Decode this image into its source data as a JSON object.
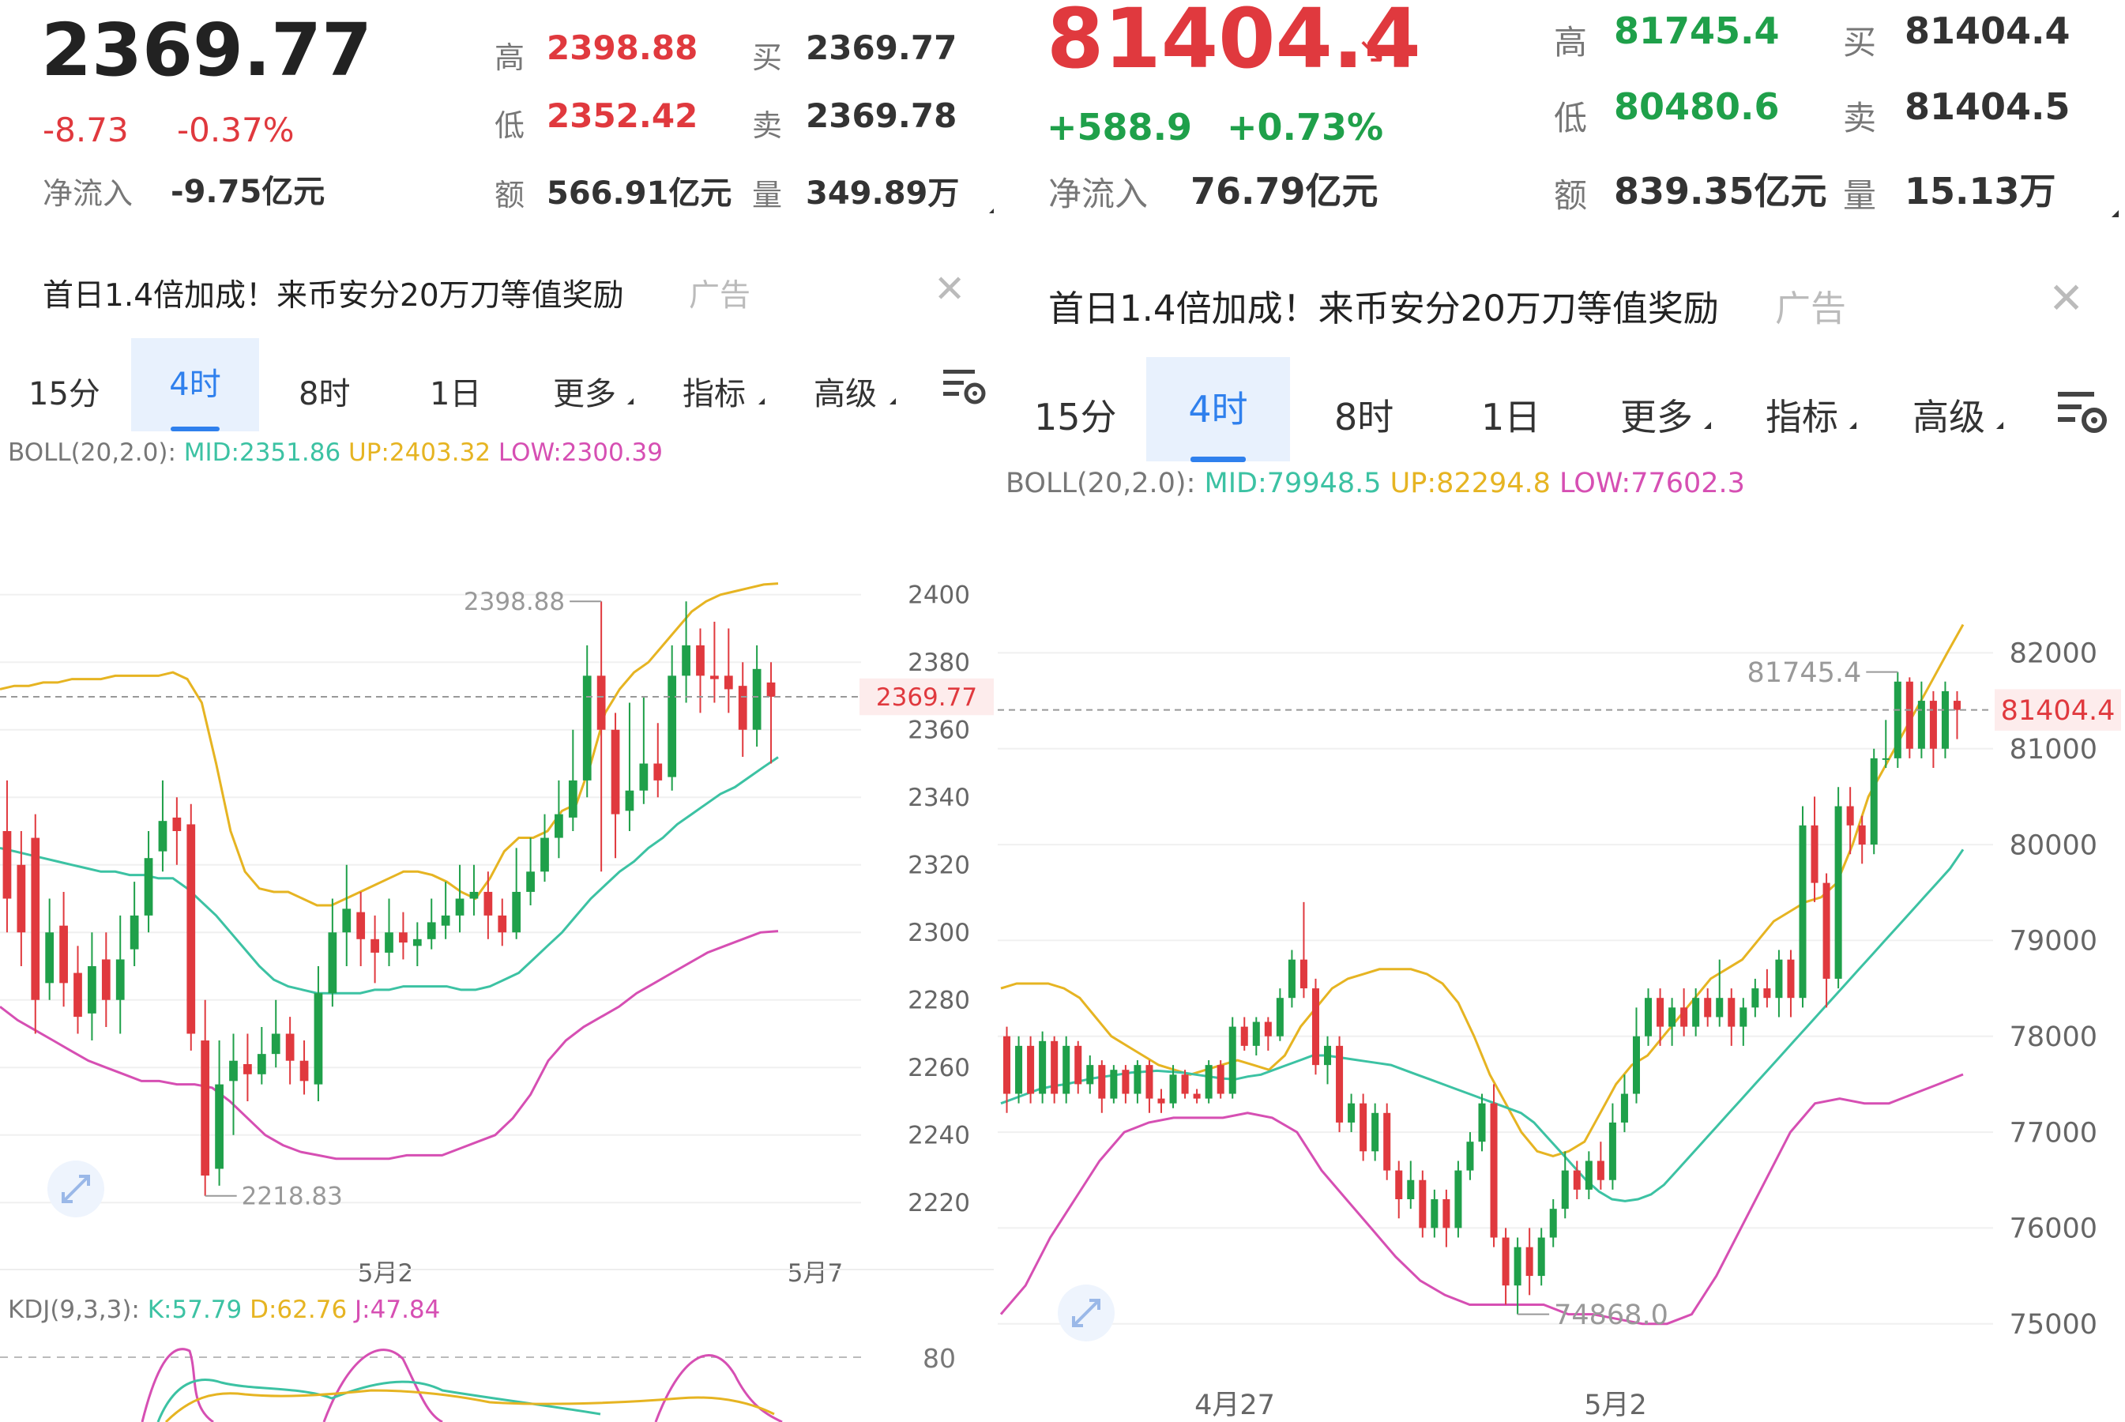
{
  "left": {
    "price": "2369.77",
    "change": "-8.73",
    "change_pct": "-0.37%",
    "netflow_label": "净流入",
    "netflow_value": "-9.75亿元",
    "stats": {
      "high_label": "高",
      "high": "2398.88",
      "low_label": "低",
      "low": "2352.42",
      "amount_label": "额",
      "amount": "566.91亿元",
      "buy_label": "买",
      "buy": "2369.77",
      "sell_label": "卖",
      "sell": "2369.78",
      "volume_label": "量",
      "volume": "349.89万"
    },
    "ad_text": "首日1.4倍加成！来币安分20万刀等值奖励",
    "ad_tag": "广告",
    "tabs": [
      "15分",
      "4时",
      "8时",
      "1日",
      "更多",
      "指标",
      "高级"
    ],
    "active_tab": "4时",
    "boll_label": "BOLL(20,2.0):",
    "boll_mid": "MID:2351.86",
    "boll_up": "UP:2403.32",
    "boll_low": "LOW:2300.39",
    "kdj_label": "KDJ(9,3,3):",
    "kdj_k": "K:57.79",
    "kdj_d": "D:62.76",
    "kdj_j": "J:47.84",
    "kdj_tick": "80"
  },
  "right": {
    "price": "81404.4",
    "change": "+588.9",
    "change_pct": "+0.73%",
    "netflow_label": "净流入",
    "netflow_value": "76.79亿元",
    "stats": {
      "high_label": "高",
      "high": "81745.4",
      "low_label": "低",
      "low": "80480.6",
      "amount_label": "额",
      "amount": "839.35亿元",
      "buy_label": "买",
      "buy": "81404.4",
      "sell_label": "卖",
      "sell": "81404.5",
      "volume_label": "量",
      "volume": "15.13万"
    },
    "ad_text": "首日1.4倍加成！来币安分20万刀等值奖励",
    "ad_tag": "广告",
    "tabs": [
      "15分",
      "4时",
      "8时",
      "1日",
      "更多",
      "指标",
      "高级"
    ],
    "active_tab": "4时",
    "boll_label": "BOLL(20,2.0):",
    "boll_mid": "MID:79948.5",
    "boll_up": "UP:82294.8",
    "boll_low": "LOW:77602.3"
  },
  "colors": {
    "up": "#1fa04a",
    "down": "#e0393e",
    "mid": "#3cc2a3",
    "upper": "#e6b422",
    "lower": "#d64fb3",
    "active_tab": "#2f80ed"
  },
  "chart_data": [
    {
      "type": "candlestick",
      "ylim": [
        2210,
        2410
      ],
      "y_ticks": [
        2400,
        2380,
        2360,
        2340,
        2320,
        2300,
        2280,
        2260,
        2240,
        2220
      ],
      "x_labels": [
        "5月2",
        "5月7"
      ],
      "last_price": 2369.77,
      "high_annotation": "2398.88",
      "low_annotation": "2218.83",
      "candles": [
        [
          2330,
          2310,
          2345,
          2300
        ],
        [
          2320,
          2300,
          2330,
          2290
        ],
        [
          2328,
          2280,
          2335,
          2270
        ],
        [
          2285,
          2300,
          2310,
          2280
        ],
        [
          2302,
          2285,
          2312,
          2278
        ],
        [
          2288,
          2275,
          2296,
          2270
        ],
        [
          2276,
          2290,
          2300,
          2268
        ],
        [
          2292,
          2280,
          2300,
          2272
        ],
        [
          2280,
          2292,
          2305,
          2270
        ],
        [
          2295,
          2305,
          2315,
          2290
        ],
        [
          2305,
          2322,
          2330,
          2300
        ],
        [
          2324,
          2333,
          2345,
          2318
        ],
        [
          2334,
          2330,
          2340,
          2320
        ],
        [
          2332,
          2270,
          2338,
          2265
        ],
        [
          2268,
          2228,
          2280,
          2222
        ],
        [
          2230,
          2255,
          2268,
          2225
        ],
        [
          2256,
          2262,
          2270,
          2240
        ],
        [
          2261,
          2258,
          2270,
          2250
        ],
        [
          2258,
          2264,
          2272,
          2255
        ],
        [
          2264,
          2270,
          2280,
          2260
        ],
        [
          2270,
          2262,
          2275,
          2255
        ],
        [
          2262,
          2256,
          2268,
          2252
        ],
        [
          2255,
          2282,
          2290,
          2250
        ],
        [
          2282,
          2300,
          2310,
          2278
        ],
        [
          2300,
          2307,
          2320,
          2290
        ],
        [
          2306,
          2298,
          2312,
          2290
        ],
        [
          2298,
          2294,
          2305,
          2285
        ],
        [
          2294,
          2300,
          2310,
          2290
        ],
        [
          2300,
          2297,
          2306,
          2292
        ],
        [
          2296,
          2298,
          2303,
          2290
        ],
        [
          2298,
          2303,
          2310,
          2295
        ],
        [
          2302,
          2305,
          2315,
          2298
        ],
        [
          2305,
          2310,
          2320,
          2300
        ],
        [
          2310,
          2312,
          2320,
          2305
        ],
        [
          2312,
          2305,
          2318,
          2298
        ],
        [
          2305,
          2300,
          2310,
          2296
        ],
        [
          2300,
          2312,
          2325,
          2298
        ],
        [
          2312,
          2318,
          2328,
          2308
        ],
        [
          2318,
          2328,
          2335,
          2315
        ],
        [
          2328,
          2335,
          2345,
          2322
        ],
        [
          2334,
          2345,
          2360,
          2330
        ],
        [
          2345,
          2376,
          2385,
          2340
        ],
        [
          2376,
          2360,
          2398,
          2318
        ],
        [
          2360,
          2335,
          2365,
          2322
        ],
        [
          2336,
          2342,
          2368,
          2330
        ],
        [
          2342,
          2350,
          2370,
          2338
        ],
        [
          2350,
          2345,
          2362,
          2340
        ],
        [
          2346,
          2376,
          2385,
          2342
        ],
        [
          2376,
          2385,
          2398,
          2368
        ],
        [
          2385,
          2376,
          2390,
          2365
        ],
        [
          2376,
          2375,
          2392,
          2368
        ],
        [
          2376,
          2372,
          2390,
          2365
        ],
        [
          2373,
          2360,
          2380,
          2352
        ],
        [
          2360,
          2378,
          2385,
          2355
        ],
        [
          2374,
          2369.77,
          2380,
          2350
        ]
      ],
      "boll_mid": [
        2325,
        2324,
        2323,
        2322,
        2321,
        2320,
        2319,
        2318,
        2318,
        2317,
        2317,
        2316,
        2316,
        2313,
        2309,
        2305,
        2300,
        2295,
        2290,
        2286,
        2284,
        2283,
        2282,
        2282,
        2282,
        2282,
        2283,
        2283,
        2284,
        2284,
        2284,
        2284,
        2283,
        2283,
        2284,
        2286,
        2288,
        2292,
        2296,
        2300,
        2305,
        2310,
        2314,
        2318,
        2321,
        2325,
        2328,
        2332,
        2335,
        2338,
        2341,
        2343,
        2346,
        2349,
        2351.86
      ],
      "boll_up": [
        2372,
        2373,
        2373,
        2374,
        2374,
        2375,
        2375,
        2375,
        2376,
        2376,
        2376,
        2376,
        2377,
        2375,
        2368,
        2350,
        2330,
        2318,
        2313,
        2312,
        2312,
        2310,
        2308,
        2308,
        2310,
        2312,
        2314,
        2316,
        2318,
        2318,
        2317,
        2315,
        2312,
        2310,
        2316,
        2324,
        2328,
        2328,
        2330,
        2336,
        2338,
        2350,
        2365,
        2372,
        2377,
        2380,
        2385,
        2390,
        2395,
        2398,
        2400,
        2401,
        2402,
        2403,
        2403.32
      ],
      "boll_low": [
        2278,
        2274,
        2271,
        2268,
        2265,
        2262,
        2260,
        2258,
        2256,
        2256,
        2255,
        2255,
        2254,
        2250,
        2245,
        2240,
        2237,
        2235,
        2234,
        2233,
        2233,
        2233,
        2233,
        2234,
        2234,
        2234,
        2236,
        2238,
        2240,
        2245,
        2252,
        2262,
        2268,
        2272,
        2275,
        2278,
        2282,
        2285,
        2288,
        2291,
        2294,
        2296,
        2298,
        2300,
        2300.39
      ]
    },
    {
      "type": "candlestick",
      "ylim": [
        74800,
        82300
      ],
      "y_ticks": [
        82000,
        81000,
        80000,
        79000,
        78000,
        77000,
        76000,
        75000
      ],
      "x_labels": [
        "4月27",
        "5月2"
      ],
      "last_price": 81404.4,
      "high_annotation": "81745.4",
      "low_annotation": "74868.0",
      "candles": [
        [
          78000,
          77400,
          78100,
          77200
        ],
        [
          77400,
          77900,
          78000,
          77300
        ],
        [
          77900,
          77400,
          78000,
          77300
        ],
        [
          77400,
          77950,
          78050,
          77300
        ],
        [
          77950,
          77400,
          78000,
          77300
        ],
        [
          77400,
          77900,
          78000,
          77300
        ],
        [
          77900,
          77500,
          77950,
          77400
        ],
        [
          77500,
          77700,
          77800,
          77400
        ],
        [
          77700,
          77350,
          77750,
          77200
        ],
        [
          77350,
          77650,
          77700,
          77300
        ],
        [
          77650,
          77400,
          77700,
          77300
        ],
        [
          77400,
          77700,
          77750,
          77300
        ],
        [
          77700,
          77350,
          77750,
          77200
        ],
        [
          77350,
          77300,
          77450,
          77200
        ],
        [
          77300,
          77600,
          77700,
          77250
        ],
        [
          77600,
          77400,
          77650,
          77350
        ],
        [
          77400,
          77350,
          77450,
          77300
        ],
        [
          77350,
          77700,
          77750,
          77300
        ],
        [
          77700,
          77400,
          77750,
          77350
        ],
        [
          77400,
          78100,
          78200,
          77350
        ],
        [
          78100,
          77900,
          78200,
          77850
        ],
        [
          77900,
          78150,
          78200,
          77800
        ],
        [
          78150,
          78000,
          78200,
          77850
        ],
        [
          78000,
          78400,
          78500,
          77950
        ],
        [
          78400,
          78800,
          78900,
          78300
        ],
        [
          78800,
          78500,
          79400,
          78400
        ],
        [
          78500,
          77700,
          78600,
          77600
        ],
        [
          77700,
          77900,
          78000,
          77500
        ],
        [
          77900,
          77100,
          78000,
          77000
        ],
        [
          77100,
          77300,
          77400,
          77000
        ],
        [
          77300,
          76800,
          77400,
          76700
        ],
        [
          76800,
          77200,
          77300,
          76700
        ],
        [
          77200,
          76600,
          77300,
          76500
        ],
        [
          76600,
          76300,
          76700,
          76100
        ],
        [
          76300,
          76500,
          76700,
          76200
        ],
        [
          76500,
          76000,
          76600,
          75900
        ],
        [
          76000,
          76300,
          76400,
          75900
        ],
        [
          76300,
          76000,
          76400,
          75800
        ],
        [
          76000,
          76600,
          76700,
          75900
        ],
        [
          76600,
          76900,
          77000,
          76500
        ],
        [
          76900,
          77300,
          77400,
          76800
        ],
        [
          77300,
          75900,
          77500,
          75800
        ],
        [
          75900,
          75400,
          76000,
          75200
        ],
        [
          75400,
          75800,
          75900,
          75100
        ],
        [
          75800,
          75500,
          76000,
          75300
        ],
        [
          75500,
          75900,
          76000,
          75400
        ],
        [
          75900,
          76200,
          76300,
          75800
        ],
        [
          76200,
          76600,
          76800,
          76100
        ],
        [
          76600,
          76400,
          76700,
          76300
        ],
        [
          76400,
          76700,
          76800,
          76300
        ],
        [
          76700,
          76500,
          76900,
          76400
        ],
        [
          76500,
          77100,
          77300,
          76400
        ],
        [
          77100,
          77400,
          77600,
          77000
        ],
        [
          77400,
          78000,
          78300,
          77300
        ],
        [
          78000,
          78400,
          78500,
          77900
        ],
        [
          78400,
          78100,
          78500,
          77900
        ],
        [
          78100,
          78300,
          78400,
          77900
        ],
        [
          78300,
          78100,
          78500,
          78000
        ],
        [
          78100,
          78400,
          78500,
          78000
        ],
        [
          78400,
          78200,
          78500,
          78100
        ],
        [
          78200,
          78400,
          78800,
          78100
        ],
        [
          78400,
          78100,
          78500,
          77900
        ],
        [
          78100,
          78300,
          78400,
          77900
        ],
        [
          78300,
          78500,
          78600,
          78200
        ],
        [
          78500,
          78400,
          78700,
          78300
        ],
        [
          78400,
          78800,
          78900,
          78200
        ],
        [
          78800,
          78400,
          78900,
          78200
        ],
        [
          78400,
          80200,
          80400,
          78300
        ],
        [
          80200,
          79600,
          80500,
          79400
        ],
        [
          79600,
          78600,
          79700,
          78300
        ],
        [
          78600,
          80400,
          80600,
          78500
        ],
        [
          80400,
          80200,
          80600,
          79900
        ],
        [
          80200,
          80000,
          80300,
          79800
        ],
        [
          80000,
          80900,
          81000,
          79900
        ],
        [
          80900,
          80900,
          81300,
          80800
        ],
        [
          80900,
          81700,
          81800,
          80800
        ],
        [
          81700,
          81000,
          81745,
          80900
        ],
        [
          81000,
          81500,
          81700,
          80900
        ],
        [
          81500,
          81000,
          81600,
          80800
        ],
        [
          81000,
          81600,
          81700,
          80900
        ],
        [
          81500,
          81404.4,
          81600,
          81100
        ]
      ],
      "boll_mid": [
        77300,
        77350,
        77400,
        77450,
        77480,
        77500,
        77530,
        77560,
        77580,
        77600,
        77620,
        77630,
        77640,
        77630,
        77620,
        77600,
        77580,
        77560,
        77550,
        77580,
        77600,
        77650,
        77700,
        77750,
        77800,
        77800,
        77780,
        77760,
        77740,
        77720,
        77700,
        77650,
        77600,
        77550,
        77500,
        77450,
        77400,
        77350,
        77300,
        77250,
        77200,
        77100,
        76950,
        76800,
        76650,
        76500,
        76380,
        76300,
        76280,
        76300,
        76350,
        76450,
        76600,
        76750,
        76900,
        77050,
        77200,
        77350,
        77500,
        77650,
        77800,
        77950,
        78100,
        78250,
        78400,
        78550,
        78700,
        78850,
        79000,
        79150,
        79300,
        79450,
        79600,
        79750,
        79948.5
      ],
      "boll_up": [
        78500,
        78550,
        78550,
        78550,
        78500,
        78400,
        78200,
        78000,
        77900,
        77800,
        77700,
        77650,
        77600,
        77650,
        77700,
        77750,
        77700,
        77650,
        77800,
        78100,
        78300,
        78500,
        78600,
        78650,
        78700,
        78700,
        78700,
        78650,
        78550,
        78350,
        78000,
        77600,
        77300,
        77000,
        76800,
        76750,
        76800,
        76900,
        77200,
        77500,
        77700,
        77800,
        78000,
        78200,
        78400,
        78600,
        78700,
        78800,
        79000,
        79200,
        79300,
        79400,
        79450,
        79600,
        80000,
        80500,
        80800,
        81100,
        81400,
        81700,
        82000,
        82294.8
      ],
      "boll_low": [
        75100,
        75400,
        75900,
        76300,
        76700,
        77000,
        77100,
        77150,
        77150,
        77150,
        77200,
        77150,
        77000,
        76600,
        76300,
        76000,
        75700,
        75450,
        75300,
        75200,
        75200,
        75200,
        75200,
        75100,
        75100,
        75050,
        75000,
        75000,
        75100,
        75500,
        76000,
        76500,
        77000,
        77300,
        77350,
        77300,
        77300,
        77400,
        77500,
        77602.3
      ]
    }
  ]
}
